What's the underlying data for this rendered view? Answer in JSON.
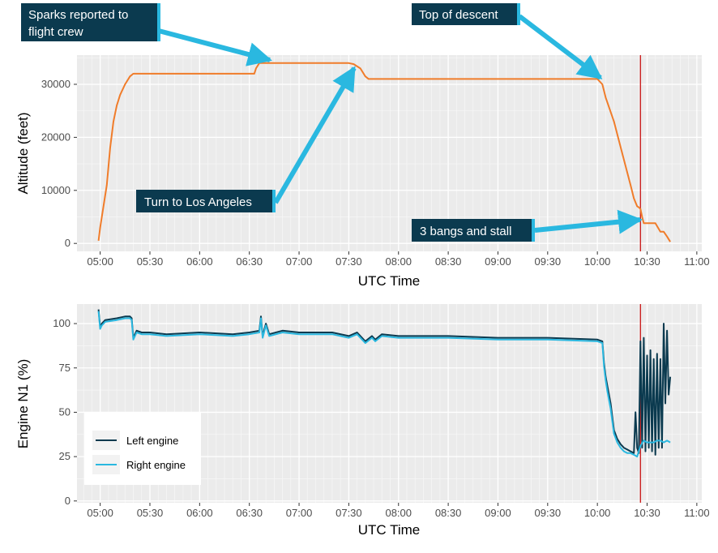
{
  "chart_data": [
    {
      "type": "line",
      "title": "",
      "xlabel": "UTC Time",
      "ylabel": "Altitude (feet)",
      "x_ticks": [
        "05:00",
        "05:30",
        "06:00",
        "06:30",
        "07:00",
        "07:30",
        "08:00",
        "08:30",
        "09:00",
        "09:30",
        "10:00",
        "10:30",
        "11:00"
      ],
      "y_ticks": [
        "0",
        "10000",
        "20000",
        "30000"
      ],
      "xlim": [
        "04:46",
        "11:03"
      ],
      "ylim": [
        -1500,
        35500
      ],
      "grid": true,
      "series": [
        {
          "color": "#f07c2a",
          "x": [
            "04:59",
            "05:00",
            "05:02",
            "05:04",
            "05:06",
            "05:08",
            "05:10",
            "05:12",
            "05:15",
            "05:18",
            "05:20",
            "06:20",
            "06:33",
            "06:34",
            "06:36",
            "06:38",
            "07:00",
            "07:30",
            "07:33",
            "07:37",
            "07:40",
            "07:42",
            "07:45",
            "08:00",
            "09:00",
            "10:00",
            "10:03",
            "10:05",
            "10:10",
            "10:15",
            "10:20",
            "10:22",
            "10:24",
            "10:25",
            "10:26",
            "10:27",
            "10:28",
            "10:30",
            "10:33",
            "10:35",
            "10:38",
            "10:40",
            "10:42",
            "10:44"
          ],
          "y": [
            500,
            3000,
            7000,
            11000,
            18000,
            23000,
            26000,
            28000,
            30000,
            31500,
            32000,
            32000,
            32000,
            33000,
            34000,
            34000,
            34000,
            34000,
            33800,
            33000,
            31500,
            31000,
            31000,
            31000,
            31000,
            31000,
            30000,
            27500,
            23000,
            17000,
            11000,
            8500,
            7000,
            6800,
            6500,
            5000,
            3800,
            3800,
            3800,
            3800,
            2200,
            2200,
            1300,
            300
          ]
        }
      ],
      "annotations": [
        {
          "text_lines": [
            "Sparks reported to",
            "flight crew"
          ]
        },
        {
          "text_lines": [
            "Top of descent"
          ]
        },
        {
          "text_lines": [
            "Turn to Los Angeles"
          ]
        },
        {
          "text_lines": [
            "3 bangs and stall"
          ]
        }
      ],
      "reference_line": {
        "x": "10:26",
        "color": "#cc2222"
      }
    },
    {
      "type": "line",
      "title": "",
      "xlabel": "UTC Time",
      "ylabel": "Engine N1 (%)",
      "x_ticks": [
        "05:00",
        "05:30",
        "06:00",
        "06:30",
        "07:00",
        "07:30",
        "08:00",
        "08:30",
        "09:00",
        "09:30",
        "10:00",
        "10:30",
        "11:00"
      ],
      "y_ticks": [
        "0",
        "25",
        "50",
        "75",
        "100"
      ],
      "xlim": [
        "04:46",
        "11:03"
      ],
      "ylim": [
        -1,
        111
      ],
      "grid": true,
      "legend": {
        "position": "bottom-left",
        "entries": [
          "Left engine",
          "Right engine"
        ]
      },
      "series": [
        {
          "name": "Left engine",
          "color": "#0b3a4f",
          "x": [
            "04:59",
            "05:00",
            "05:01",
            "05:03",
            "05:10",
            "05:15",
            "05:18",
            "05:19",
            "05:20",
            "05:22",
            "05:25",
            "05:30",
            "05:40",
            "06:00",
            "06:20",
            "06:30",
            "06:36",
            "06:37",
            "06:38",
            "06:40",
            "06:42",
            "06:50",
            "07:00",
            "07:20",
            "07:30",
            "07:35",
            "07:40",
            "07:44",
            "07:46",
            "07:50",
            "08:00",
            "08:30",
            "09:00",
            "09:30",
            "10:00",
            "10:03",
            "10:04",
            "10:05",
            "10:06",
            "10:08",
            "10:10",
            "10:12",
            "10:14",
            "10:16",
            "10:18",
            "10:20",
            "10:22",
            "10:23",
            "10:24",
            "10:25",
            "10:26",
            "10:27",
            "10:28",
            "10:29",
            "10:30",
            "10:31",
            "10:32",
            "10:33",
            "10:34",
            "10:35",
            "10:36",
            "10:37",
            "10:38",
            "10:39",
            "10:40",
            "10:41",
            "10:42",
            "10:43",
            "10:44"
          ],
          "y": [
            108,
            98,
            100,
            102,
            103,
            104,
            104,
            103,
            92,
            96,
            95,
            95,
            94,
            95,
            94,
            95,
            96,
            104,
            93,
            100,
            94,
            96,
            95,
            95,
            93,
            95,
            90,
            93,
            91,
            94,
            93,
            93,
            92,
            92,
            91,
            90,
            78,
            70,
            65,
            55,
            40,
            35,
            32,
            30,
            29,
            28,
            27,
            50,
            30,
            27,
            90,
            30,
            92,
            28,
            82,
            30,
            85,
            28,
            80,
            26,
            83,
            30,
            80,
            30,
            100,
            55,
            96,
            60,
            70
          ]
        },
        {
          "name": "Right engine",
          "color": "#2ab8e0",
          "x": [
            "04:59",
            "05:00",
            "05:01",
            "05:03",
            "05:10",
            "05:15",
            "05:18",
            "05:19",
            "05:20",
            "05:22",
            "05:25",
            "05:30",
            "05:40",
            "06:00",
            "06:20",
            "06:30",
            "06:36",
            "06:37",
            "06:38",
            "06:40",
            "06:42",
            "06:50",
            "07:00",
            "07:20",
            "07:30",
            "07:35",
            "07:40",
            "07:44",
            "07:46",
            "07:50",
            "08:00",
            "08:30",
            "09:00",
            "09:30",
            "10:00",
            "10:03",
            "10:04",
            "10:05",
            "10:06",
            "10:08",
            "10:10",
            "10:12",
            "10:14",
            "10:16",
            "10:18",
            "10:20",
            "10:22",
            "10:24",
            "10:26",
            "10:28",
            "10:30",
            "10:32",
            "10:34",
            "10:36",
            "10:38",
            "10:40",
            "10:42",
            "10:44"
          ],
          "y": [
            107,
            97,
            99,
            101,
            102,
            103,
            103,
            102,
            91,
            95,
            94,
            94,
            93,
            94,
            93,
            94,
            95,
            103,
            92,
            99,
            93,
            95,
            94,
            94,
            92,
            94,
            89,
            92,
            90,
            93,
            92,
            92,
            91,
            91,
            90,
            89,
            76,
            68,
            62,
            52,
            38,
            33,
            30,
            28,
            27,
            27,
            26,
            25,
            31,
            34,
            33,
            33,
            33,
            34,
            34,
            33,
            34,
            33
          ]
        }
      ],
      "reference_line": {
        "x": "10:26",
        "color": "#cc2222"
      }
    }
  ]
}
